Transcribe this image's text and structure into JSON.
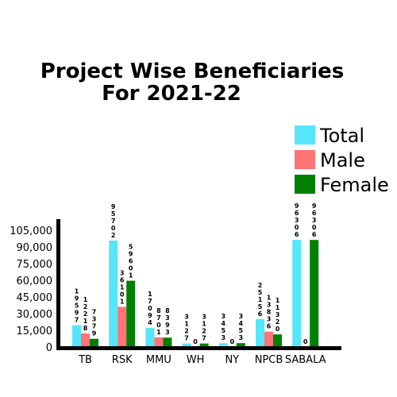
{
  "chart_data": {
    "type": "bar",
    "title": [
      "Project Wise Beneficiaries",
      "For 2021-22"
    ],
    "categories": [
      "TB",
      "RSK",
      "MMU",
      "WH",
      "NY",
      "NPCB",
      "SABALA"
    ],
    "series": [
      {
        "name": "Total",
        "color": "#55e6fa",
        "values": [
          19597,
          95702,
          17094,
          3127,
          3453,
          25156,
          96306
        ],
        "labels": [
          "19597",
          "95702",
          "17094",
          "3127",
          "3453",
          "25156",
          "96306"
        ]
      },
      {
        "name": "Male",
        "color": "#ff7474",
        "values": [
          12218,
          36101,
          8701,
          0,
          0,
          13836,
          0
        ],
        "labels": [
          "12218",
          "36101",
          "8701",
          "0",
          "0",
          "13836",
          "0"
        ]
      },
      {
        "name": "Female",
        "color": "#008000",
        "values": [
          7379,
          59601,
          8393,
          3127,
          3453,
          11320,
          96306
        ],
        "labels": [
          "7379",
          "59601",
          "8393",
          "3127",
          "3453",
          "11320",
          "96306"
        ]
      }
    ],
    "yticks": [
      "0",
      "15,000",
      "30,000",
      "45,000",
      "60,000",
      "75,000",
      "90,000",
      "105,000"
    ],
    "ylim": [
      0,
      115000
    ],
    "legend": "top-right",
    "grid": false
  }
}
